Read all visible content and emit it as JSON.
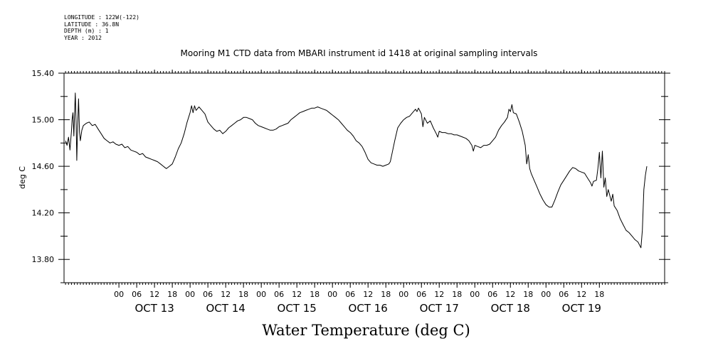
{
  "header": {
    "meta_lines": [
      "LONGITUDE : 122W(-122)",
      "LATITUDE : 36.8N",
      "DEPTH (m) : 1",
      "YEAR : 2012"
    ]
  },
  "chart_data": {
    "type": "line",
    "title": "Mooring M1 CTD data from MBARI instrument id 1418 at original sampling intervals",
    "xlabel": "Water Temperature (deg C)",
    "ylabel": "deg C",
    "ylim": [
      13.6,
      15.4
    ],
    "yticks": [
      "13.80",
      "14.20",
      "14.60",
      "15.00",
      "15.40"
    ],
    "x_unit": "hours since OCT 13 00:00 (2012)",
    "xlim": [
      -18.5,
      184
    ],
    "xtick_hour_labels": [
      "00",
      "06",
      "12",
      "18",
      "00",
      "06",
      "12",
      "18",
      "00",
      "06",
      "12",
      "18",
      "00",
      "06",
      "12",
      "18",
      "00",
      "06",
      "12",
      "18",
      "00",
      "06",
      "12",
      "18",
      "00",
      "06",
      "12",
      "18"
    ],
    "date_labels": [
      "OCT 13",
      "OCT 14",
      "OCT 15",
      "OCT 16",
      "OCT 17",
      "OCT 18",
      "OCT 19"
    ],
    "grid": false,
    "series": [
      {
        "name": "",
        "points": [
          [
            -18,
            14.82
          ],
          [
            -17.5,
            14.78
          ],
          [
            -17,
            14.85
          ],
          [
            -16.5,
            14.74
          ],
          [
            -16,
            14.9
          ],
          [
            -15.8,
            15.0
          ],
          [
            -15.5,
            15.06
          ],
          [
            -15.2,
            14.86
          ],
          [
            -15,
            15.02
          ],
          [
            -14.7,
            15.23
          ],
          [
            -14.4,
            14.95
          ],
          [
            -14.2,
            14.65
          ],
          [
            -13.9,
            14.96
          ],
          [
            -13.6,
            15.18
          ],
          [
            -13.3,
            14.9
          ],
          [
            -13,
            14.82
          ],
          [
            -12.5,
            14.91
          ],
          [
            -12,
            14.95
          ],
          [
            -11,
            14.97
          ],
          [
            -10,
            14.98
          ],
          [
            -9,
            14.95
          ],
          [
            -8,
            14.96
          ],
          [
            -7,
            14.92
          ],
          [
            -6,
            14.88
          ],
          [
            -5,
            14.84
          ],
          [
            -4,
            14.82
          ],
          [
            -3,
            14.8
          ],
          [
            -2,
            14.81
          ],
          [
            -1,
            14.79
          ],
          [
            0,
            14.78
          ],
          [
            1,
            14.79
          ],
          [
            2,
            14.76
          ],
          [
            3,
            14.77
          ],
          [
            4,
            14.74
          ],
          [
            5,
            14.73
          ],
          [
            6,
            14.72
          ],
          [
            7,
            14.7
          ],
          [
            8,
            14.71
          ],
          [
            9,
            14.68
          ],
          [
            10,
            14.67
          ],
          [
            11,
            14.66
          ],
          [
            12,
            14.65
          ],
          [
            13,
            14.64
          ],
          [
            14,
            14.62
          ],
          [
            15,
            14.6
          ],
          [
            15.5,
            14.59
          ],
          [
            16,
            14.58
          ],
          [
            17,
            14.6
          ],
          [
            18,
            14.62
          ],
          [
            19,
            14.68
          ],
          [
            20,
            14.75
          ],
          [
            21,
            14.8
          ],
          [
            22,
            14.88
          ],
          [
            23,
            14.98
          ],
          [
            24,
            15.06
          ],
          [
            24.5,
            15.12
          ],
          [
            25,
            15.06
          ],
          [
            25.5,
            15.12
          ],
          [
            26,
            15.08
          ],
          [
            27,
            15.11
          ],
          [
            28,
            15.08
          ],
          [
            29,
            15.05
          ],
          [
            30,
            14.98
          ],
          [
            31,
            14.95
          ],
          [
            32,
            14.92
          ],
          [
            33,
            14.9
          ],
          [
            34,
            14.91
          ],
          [
            35,
            14.88
          ],
          [
            36,
            14.9
          ],
          [
            37,
            14.93
          ],
          [
            38,
            14.95
          ],
          [
            39,
            14.97
          ],
          [
            40,
            14.99
          ],
          [
            41,
            15.0
          ],
          [
            42,
            15.02
          ],
          [
            43,
            15.02
          ],
          [
            44,
            15.01
          ],
          [
            45,
            15.0
          ],
          [
            46,
            14.97
          ],
          [
            47,
            14.95
          ],
          [
            48,
            14.94
          ],
          [
            49,
            14.93
          ],
          [
            50,
            14.92
          ],
          [
            51,
            14.91
          ],
          [
            52,
            14.91
          ],
          [
            53,
            14.92
          ],
          [
            54,
            14.94
          ],
          [
            55,
            14.95
          ],
          [
            56,
            14.96
          ],
          [
            57,
            14.97
          ],
          [
            58,
            15.0
          ],
          [
            59,
            15.02
          ],
          [
            60,
            15.04
          ],
          [
            61,
            15.06
          ],
          [
            62,
            15.07
          ],
          [
            63,
            15.08
          ],
          [
            64,
            15.09
          ],
          [
            65,
            15.1
          ],
          [
            66,
            15.1
          ],
          [
            67,
            15.11
          ],
          [
            68,
            15.1
          ],
          [
            69,
            15.09
          ],
          [
            70,
            15.08
          ],
          [
            71,
            15.06
          ],
          [
            72,
            15.04
          ],
          [
            73,
            15.02
          ],
          [
            74,
            15.0
          ],
          [
            75,
            14.97
          ],
          [
            76,
            14.94
          ],
          [
            77,
            14.91
          ],
          [
            78,
            14.89
          ],
          [
            79,
            14.86
          ],
          [
            80,
            14.82
          ],
          [
            81,
            14.8
          ],
          [
            82,
            14.77
          ],
          [
            83,
            14.72
          ],
          [
            84,
            14.66
          ],
          [
            85,
            14.63
          ],
          [
            86,
            14.62
          ],
          [
            87,
            14.61
          ],
          [
            88,
            14.61
          ],
          [
            89,
            14.6
          ],
          [
            90,
            14.61
          ],
          [
            91,
            14.62
          ],
          [
            91.5,
            14.64
          ],
          [
            92,
            14.7
          ],
          [
            93,
            14.82
          ],
          [
            94,
            14.93
          ],
          [
            95,
            14.97
          ],
          [
            96,
            15.0
          ],
          [
            97,
            15.02
          ],
          [
            98,
            15.03
          ],
          [
            99,
            15.06
          ],
          [
            100,
            15.09
          ],
          [
            100.5,
            15.07
          ],
          [
            101,
            15.1
          ],
          [
            102,
            15.05
          ],
          [
            102.5,
            14.94
          ],
          [
            103,
            15.02
          ],
          [
            104,
            14.97
          ],
          [
            105,
            14.99
          ],
          [
            106,
            14.93
          ],
          [
            107,
            14.88
          ],
          [
            107.5,
            14.85
          ],
          [
            108,
            14.9
          ],
          [
            109,
            14.89
          ],
          [
            110,
            14.89
          ],
          [
            111,
            14.88
          ],
          [
            112,
            14.88
          ],
          [
            113,
            14.87
          ],
          [
            114,
            14.87
          ],
          [
            115,
            14.86
          ],
          [
            116,
            14.85
          ],
          [
            117,
            14.84
          ],
          [
            118,
            14.82
          ],
          [
            119,
            14.78
          ],
          [
            119.5,
            14.73
          ],
          [
            120,
            14.78
          ],
          [
            121,
            14.77
          ],
          [
            122,
            14.76
          ],
          [
            123,
            14.78
          ],
          [
            124,
            14.78
          ],
          [
            125,
            14.79
          ],
          [
            126,
            14.82
          ],
          [
            127,
            14.85
          ],
          [
            128,
            14.91
          ],
          [
            129,
            14.95
          ],
          [
            130,
            14.98
          ],
          [
            131,
            15.02
          ],
          [
            131.5,
            15.09
          ],
          [
            132,
            15.07
          ],
          [
            132.5,
            15.13
          ],
          [
            133,
            15.06
          ],
          [
            134,
            15.05
          ],
          [
            135,
            14.98
          ],
          [
            136,
            14.9
          ],
          [
            137,
            14.78
          ],
          [
            137.5,
            14.62
          ],
          [
            138,
            14.7
          ],
          [
            138.5,
            14.58
          ],
          [
            139,
            14.54
          ],
          [
            140,
            14.48
          ],
          [
            141,
            14.42
          ],
          [
            142,
            14.36
          ],
          [
            143,
            14.31
          ],
          [
            144,
            14.27
          ],
          [
            145,
            14.25
          ],
          [
            146,
            14.25
          ],
          [
            147,
            14.31
          ],
          [
            148,
            14.38
          ],
          [
            149,
            14.44
          ],
          [
            150,
            14.48
          ],
          [
            151,
            14.52
          ],
          [
            152,
            14.56
          ],
          [
            153,
            14.59
          ],
          [
            154,
            14.58
          ],
          [
            155,
            14.56
          ],
          [
            156,
            14.55
          ],
          [
            157,
            14.54
          ],
          [
            158,
            14.5
          ],
          [
            159,
            14.46
          ],
          [
            159.5,
            14.43
          ],
          [
            160,
            14.47
          ],
          [
            161,
            14.48
          ],
          [
            161.5,
            14.58
          ],
          [
            162,
            14.72
          ],
          [
            162.5,
            14.5
          ],
          [
            163,
            14.73
          ],
          [
            163.5,
            14.42
          ],
          [
            164,
            14.5
          ],
          [
            164.5,
            14.34
          ],
          [
            165,
            14.4
          ],
          [
            166,
            14.3
          ],
          [
            166.5,
            14.36
          ],
          [
            167,
            14.26
          ],
          [
            168,
            14.22
          ],
          [
            169,
            14.15
          ],
          [
            170,
            14.1
          ],
          [
            171,
            14.05
          ],
          [
            172,
            14.03
          ],
          [
            173,
            14.0
          ],
          [
            174,
            13.97
          ],
          [
            175,
            13.95
          ],
          [
            176,
            13.9
          ],
          [
            176.5,
            14.05
          ],
          [
            177,
            14.4
          ],
          [
            177.5,
            14.52
          ],
          [
            178,
            14.6
          ]
        ]
      }
    ]
  }
}
